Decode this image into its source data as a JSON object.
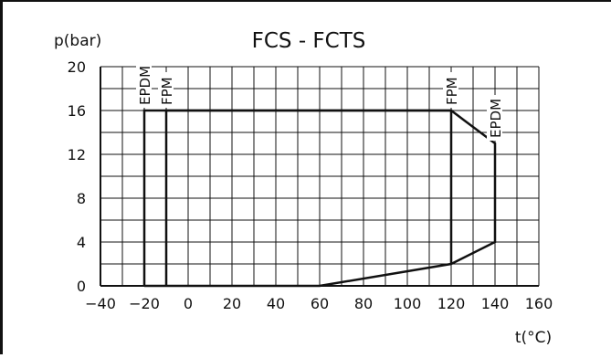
{
  "chart_data": {
    "type": "line",
    "title": "FCS - FCTS",
    "ylabel": "p(bar)",
    "xlabel": "t(°C)",
    "xlim": [
      -40,
      160
    ],
    "ylim": [
      0,
      20
    ],
    "x_ticks": [
      -40,
      -20,
      0,
      20,
      40,
      60,
      80,
      100,
      120,
      140,
      160
    ],
    "y_ticks": [
      0,
      4,
      8,
      12,
      16,
      20
    ],
    "grid": true,
    "series": [
      {
        "name": "EPDM",
        "points": [
          [
            -20,
            0
          ],
          [
            60,
            0
          ],
          [
            120,
            2
          ],
          [
            140,
            4
          ],
          [
            140,
            13
          ],
          [
            120,
            16
          ],
          [
            -20,
            16
          ],
          [
            -20,
            0
          ]
        ]
      },
      {
        "name": "FPM",
        "points": [
          [
            -10,
            0
          ],
          [
            -10,
            16
          ],
          [
            120,
            16
          ],
          [
            120,
            2
          ]
        ]
      }
    ],
    "annotations": [
      {
        "text": "EPDM",
        "x": -20,
        "y": 16,
        "orientation": "vertical"
      },
      {
        "text": "FPM",
        "x": -10,
        "y": 16,
        "orientation": "vertical"
      },
      {
        "text": "FPM",
        "x": 120,
        "y": 16,
        "orientation": "vertical"
      },
      {
        "text": "EPDM",
        "x": 140,
        "y": 13,
        "orientation": "vertical"
      }
    ]
  }
}
